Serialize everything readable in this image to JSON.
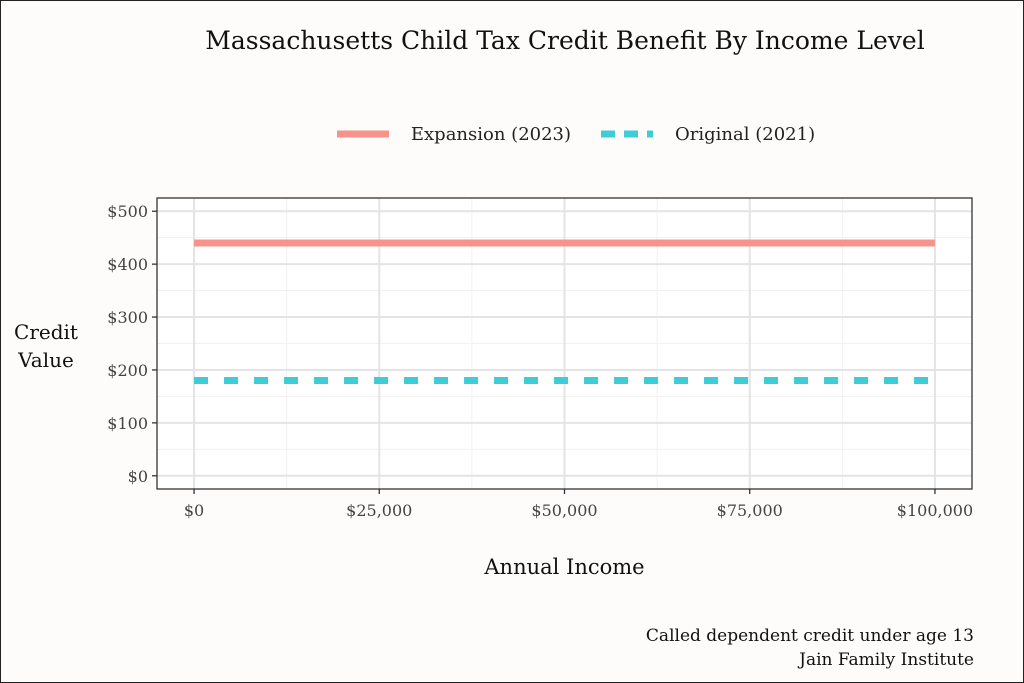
{
  "chart_data": {
    "type": "line",
    "title": "Massachusetts Child Tax Credit Benefit By Income Level",
    "xlabel": "Annual Income",
    "ylabel": "Credit Value",
    "x_ticks": [
      "$0",
      "$25,000",
      "$50,000",
      "$75,000",
      "$100,000"
    ],
    "y_ticks": [
      "$0",
      "$100",
      "$200",
      "$300",
      "$400",
      "$500"
    ],
    "xlim": [
      -5000,
      105000
    ],
    "ylim": [
      -25,
      525
    ],
    "grid": true,
    "legend_position": "top",
    "series": [
      {
        "name": "Expansion (2023)",
        "x": [
          0,
          100000
        ],
        "y": [
          440,
          440
        ],
        "color": "#f8938b",
        "style": "solid"
      },
      {
        "name": "Original (2021)",
        "x": [
          0,
          100000
        ],
        "y": [
          180,
          180
        ],
        "color": "#3ecdd6",
        "style": "dashed"
      }
    ],
    "caption_lines": [
      "Called dependent credit under age 13",
      "Jain Family Institute"
    ]
  }
}
